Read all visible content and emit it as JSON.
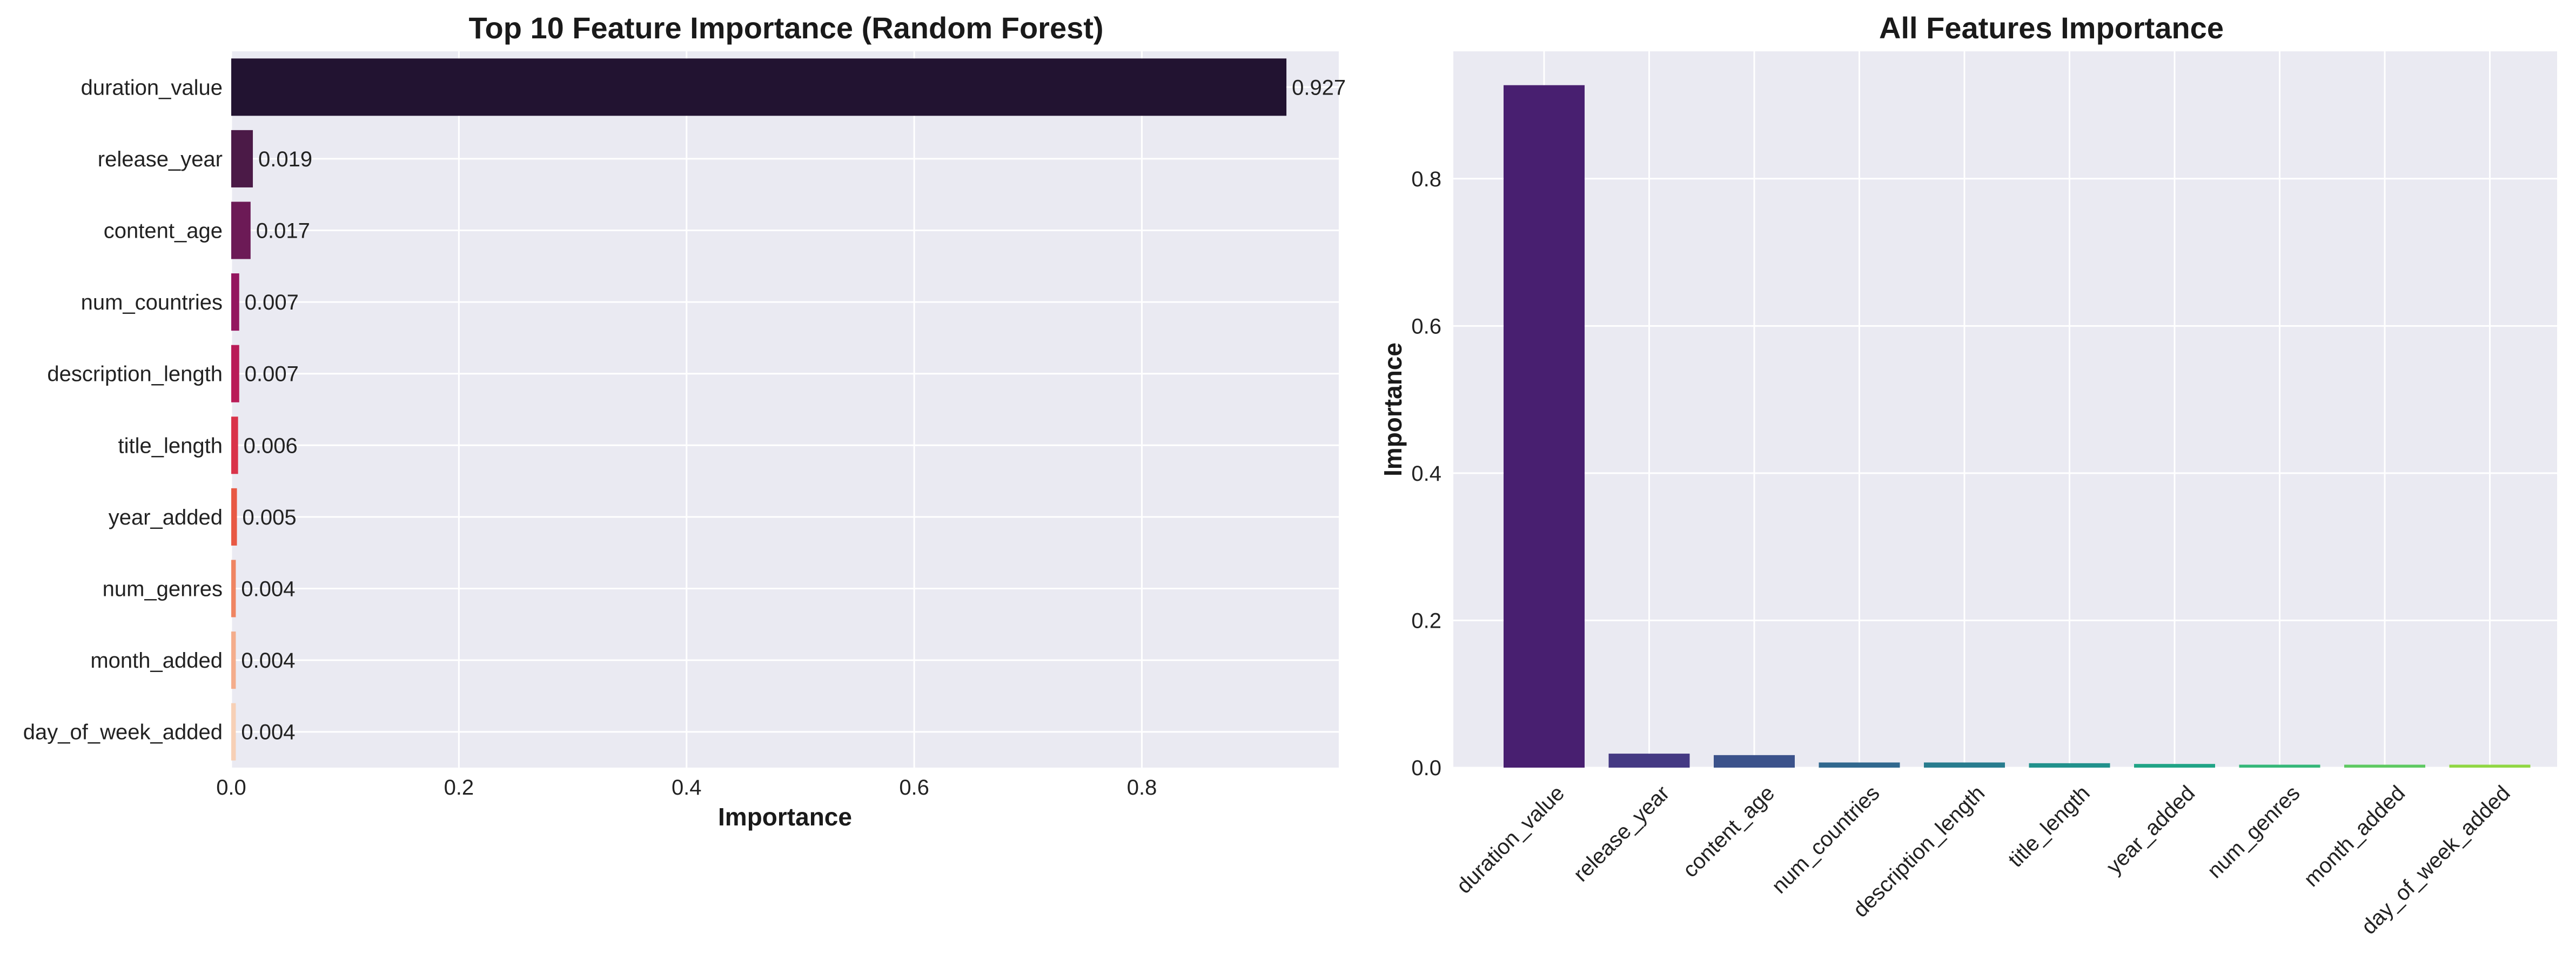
{
  "chart_data": [
    {
      "type": "bar",
      "orientation": "horizontal",
      "title": "Top 10 Feature Importance (Random Forest)",
      "xlabel": "Importance",
      "ylabel": "",
      "xlim": [
        0,
        0.973
      ],
      "xticks": [
        "0.0",
        "0.2",
        "0.4",
        "0.6",
        "0.8"
      ],
      "xtick_values": [
        0,
        0.2,
        0.4,
        0.6,
        0.8
      ],
      "grid": true,
      "categories": [
        "duration_value",
        "release_year",
        "content_age",
        "num_countries",
        "description_length",
        "title_length",
        "year_added",
        "num_genres",
        "month_added",
        "day_of_week_added"
      ],
      "values": [
        0.927,
        0.019,
        0.017,
        0.007,
        0.007,
        0.006,
        0.005,
        0.004,
        0.004,
        0.004
      ],
      "data_labels": [
        "0.927",
        "0.019",
        "0.017",
        "0.007",
        "0.007",
        "0.006",
        "0.005",
        "0.004",
        "0.004",
        "0.004"
      ],
      "colors": [
        "#221331",
        "#4b1a47",
        "#6c1a56",
        "#94165f",
        "#b91c58",
        "#d9334a",
        "#e85944",
        "#ef8562",
        "#f4ad8c",
        "#f7d0b6"
      ]
    },
    {
      "type": "bar",
      "orientation": "vertical",
      "title": "All Features Importance",
      "xlabel": "",
      "ylabel": "Importance",
      "ylim": [
        0,
        0.973
      ],
      "yticks": [
        "0.0",
        "0.2",
        "0.4",
        "0.6",
        "0.8"
      ],
      "ytick_values": [
        0,
        0.2,
        0.4,
        0.6,
        0.8
      ],
      "grid": true,
      "categories": [
        "duration_value",
        "release_year",
        "content_age",
        "num_countries",
        "description_length",
        "title_length",
        "year_added",
        "num_genres",
        "month_added",
        "day_of_week_added"
      ],
      "values": [
        0.927,
        0.019,
        0.017,
        0.007,
        0.007,
        0.006,
        0.005,
        0.004,
        0.004,
        0.004
      ],
      "colors": [
        "#481f70",
        "#443983",
        "#3b528b",
        "#31688e",
        "#287c8e",
        "#21918c",
        "#20a486",
        "#35b779",
        "#5ec962",
        "#90d743"
      ]
    }
  ]
}
